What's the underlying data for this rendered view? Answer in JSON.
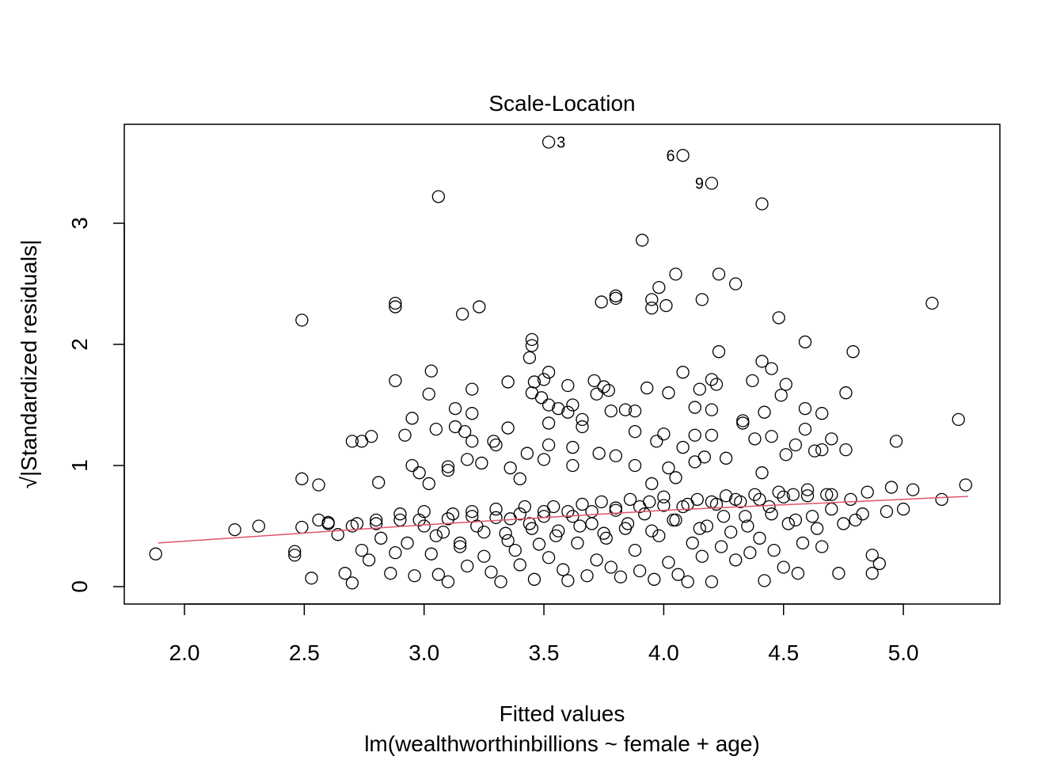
{
  "chart_data": {
    "type": "scatter",
    "title": "Scale-Location",
    "xlabel": "Fitted values",
    "sublabel": "lm(wealthworthinbillions ~ female + age)",
    "ylabel": "√|Standardized residuals|",
    "xlim": [
      1.78,
      5.4
    ],
    "ylim": [
      -0.14,
      3.82
    ],
    "xticks": [
      "2.0",
      "2.5",
      "3.0",
      "3.5",
      "4.0",
      "4.5",
      "5.0"
    ],
    "yticks": [
      "0",
      "1",
      "2",
      "3"
    ],
    "point_color": "#000000",
    "smoother_color": "#DF536B",
    "labeled_points": [
      {
        "label": "3",
        "x": 3.52,
        "y": 3.67
      },
      {
        "label": "6",
        "x": 4.08,
        "y": 3.56
      },
      {
        "label": "9",
        "x": 4.2,
        "y": 3.33
      }
    ],
    "points": [
      [
        3.06,
        3.22
      ],
      [
        4.41,
        3.16
      ],
      [
        3.91,
        2.86
      ],
      [
        4.05,
        2.58
      ],
      [
        4.23,
        2.58
      ],
      [
        4.3,
        2.5
      ],
      [
        3.98,
        2.47
      ],
      [
        3.95,
        2.37
      ],
      [
        3.95,
        2.3
      ],
      [
        4.01,
        2.32
      ],
      [
        4.16,
        2.37
      ],
      [
        3.8,
        2.4
      ],
      [
        3.8,
        2.38
      ],
      [
        3.74,
        2.35
      ],
      [
        2.88,
        2.34
      ],
      [
        2.88,
        2.31
      ],
      [
        3.23,
        2.31
      ],
      [
        3.16,
        2.25
      ],
      [
        2.49,
        2.2
      ],
      [
        4.48,
        2.22
      ],
      [
        5.12,
        2.34
      ],
      [
        4.59,
        2.02
      ],
      [
        4.79,
        1.94
      ],
      [
        4.23,
        1.94
      ],
      [
        3.45,
        2.04
      ],
      [
        3.45,
        1.99
      ],
      [
        3.44,
        1.89
      ],
      [
        3.03,
        1.78
      ],
      [
        3.52,
        1.77
      ],
      [
        4.08,
        1.77
      ],
      [
        4.41,
        1.86
      ],
      [
        4.45,
        1.8
      ],
      [
        2.88,
        1.7
      ],
      [
        3.35,
        1.69
      ],
      [
        3.46,
        1.69
      ],
      [
        3.5,
        1.71
      ],
      [
        3.71,
        1.7
      ],
      [
        4.2,
        1.71
      ],
      [
        4.22,
        1.67
      ],
      [
        4.51,
        1.67
      ],
      [
        4.37,
        1.7
      ],
      [
        3.6,
        1.66
      ],
      [
        3.75,
        1.65
      ],
      [
        3.77,
        1.62
      ],
      [
        3.72,
        1.59
      ],
      [
        3.45,
        1.6
      ],
      [
        3.49,
        1.56
      ],
      [
        3.2,
        1.63
      ],
      [
        3.02,
        1.59
      ],
      [
        3.93,
        1.64
      ],
      [
        4.02,
        1.6
      ],
      [
        4.15,
        1.63
      ],
      [
        4.76,
        1.6
      ],
      [
        4.49,
        1.58
      ],
      [
        3.52,
        1.5
      ],
      [
        3.56,
        1.47
      ],
      [
        3.6,
        1.44
      ],
      [
        3.62,
        1.5
      ],
      [
        3.78,
        1.45
      ],
      [
        3.84,
        1.46
      ],
      [
        3.88,
        1.45
      ],
      [
        4.13,
        1.48
      ],
      [
        4.2,
        1.46
      ],
      [
        4.42,
        1.44
      ],
      [
        4.59,
        1.47
      ],
      [
        4.66,
        1.43
      ],
      [
        3.13,
        1.47
      ],
      [
        3.2,
        1.43
      ],
      [
        2.95,
        1.39
      ],
      [
        3.66,
        1.38
      ],
      [
        4.33,
        1.37
      ],
      [
        4.33,
        1.35
      ],
      [
        5.23,
        1.38
      ],
      [
        3.05,
        1.3
      ],
      [
        3.35,
        1.31
      ],
      [
        3.13,
        1.32
      ],
      [
        3.17,
        1.28
      ],
      [
        3.52,
        1.35
      ],
      [
        3.66,
        1.32
      ],
      [
        3.88,
        1.28
      ],
      [
        4.0,
        1.26
      ],
      [
        4.13,
        1.25
      ],
      [
        4.2,
        1.25
      ],
      [
        4.38,
        1.22
      ],
      [
        4.45,
        1.24
      ],
      [
        4.59,
        1.3
      ],
      [
        4.7,
        1.22
      ],
      [
        2.92,
        1.25
      ],
      [
        2.78,
        1.24
      ],
      [
        2.7,
        1.2
      ],
      [
        2.74,
        1.2
      ],
      [
        3.29,
        1.2
      ],
      [
        3.2,
        1.2
      ],
      [
        3.3,
        1.17
      ],
      [
        4.97,
        1.2
      ],
      [
        4.55,
        1.17
      ],
      [
        4.76,
        1.13
      ],
      [
        4.63,
        1.12
      ],
      [
        4.66,
        1.13
      ],
      [
        3.43,
        1.1
      ],
      [
        3.52,
        1.17
      ],
      [
        3.62,
        1.15
      ],
      [
        3.73,
        1.1
      ],
      [
        3.8,
        1.08
      ],
      [
        3.97,
        1.2
      ],
      [
        4.08,
        1.15
      ],
      [
        4.17,
        1.07
      ],
      [
        4.26,
        1.06
      ],
      [
        4.51,
        1.09
      ],
      [
        3.18,
        1.05
      ],
      [
        3.24,
        1.02
      ],
      [
        3.5,
        1.05
      ],
      [
        2.95,
        1.0
      ],
      [
        2.98,
        0.94
      ],
      [
        3.1,
        0.96
      ],
      [
        3.1,
        0.99
      ],
      [
        3.36,
        0.98
      ],
      [
        3.62,
        1.0
      ],
      [
        3.88,
        1.0
      ],
      [
        4.02,
        0.98
      ],
      [
        4.13,
        1.03
      ],
      [
        4.41,
        0.94
      ],
      [
        2.49,
        0.89
      ],
      [
        2.56,
        0.84
      ],
      [
        2.81,
        0.86
      ],
      [
        3.02,
        0.85
      ],
      [
        3.4,
        0.89
      ],
      [
        3.95,
        0.85
      ],
      [
        4.05,
        0.9
      ],
      [
        4.95,
        0.82
      ],
      [
        5.04,
        0.8
      ],
      [
        5.26,
        0.84
      ],
      [
        5.16,
        0.72
      ],
      [
        4.85,
        0.78
      ],
      [
        1.88,
        0.27
      ],
      [
        2.21,
        0.47
      ],
      [
        2.31,
        0.5
      ],
      [
        2.46,
        0.29
      ],
      [
        2.46,
        0.26
      ],
      [
        2.49,
        0.49
      ],
      [
        2.53,
        0.07
      ],
      [
        2.56,
        0.55
      ],
      [
        2.6,
        0.53
      ],
      [
        2.64,
        0.43
      ],
      [
        2.67,
        0.11
      ],
      [
        2.7,
        0.03
      ],
      [
        2.72,
        0.52
      ],
      [
        2.74,
        0.3
      ],
      [
        2.77,
        0.22
      ],
      [
        2.8,
        0.55
      ],
      [
        2.82,
        0.4
      ],
      [
        2.86,
        0.11
      ],
      [
        2.88,
        0.28
      ],
      [
        2.9,
        0.6
      ],
      [
        2.93,
        0.36
      ],
      [
        2.96,
        0.09
      ],
      [
        2.98,
        0.55
      ],
      [
        3.0,
        0.62
      ],
      [
        3.03,
        0.27
      ],
      [
        3.06,
        0.1
      ],
      [
        3.08,
        0.45
      ],
      [
        3.1,
        0.04
      ],
      [
        3.12,
        0.6
      ],
      [
        3.15,
        0.33
      ],
      [
        3.18,
        0.17
      ],
      [
        3.2,
        0.62
      ],
      [
        3.22,
        0.5
      ],
      [
        3.25,
        0.25
      ],
      [
        3.28,
        0.12
      ],
      [
        3.3,
        0.64
      ],
      [
        3.32,
        0.04
      ],
      [
        3.34,
        0.44
      ],
      [
        3.36,
        0.56
      ],
      [
        3.38,
        0.3
      ],
      [
        3.4,
        0.18
      ],
      [
        3.42,
        0.66
      ],
      [
        3.44,
        0.52
      ],
      [
        3.46,
        0.06
      ],
      [
        3.48,
        0.35
      ],
      [
        3.5,
        0.62
      ],
      [
        3.52,
        0.24
      ],
      [
        3.54,
        0.66
      ],
      [
        3.56,
        0.46
      ],
      [
        3.58,
        0.14
      ],
      [
        3.6,
        0.05
      ],
      [
        3.62,
        0.58
      ],
      [
        3.64,
        0.36
      ],
      [
        3.66,
        0.68
      ],
      [
        3.68,
        0.09
      ],
      [
        3.7,
        0.52
      ],
      [
        3.72,
        0.22
      ],
      [
        3.74,
        0.7
      ],
      [
        3.76,
        0.4
      ],
      [
        3.78,
        0.16
      ],
      [
        3.8,
        0.63
      ],
      [
        3.82,
        0.08
      ],
      [
        3.84,
        0.48
      ],
      [
        3.86,
        0.72
      ],
      [
        3.88,
        0.3
      ],
      [
        3.9,
        0.13
      ],
      [
        3.92,
        0.6
      ],
      [
        3.94,
        0.7
      ],
      [
        3.96,
        0.06
      ],
      [
        3.98,
        0.42
      ],
      [
        4.0,
        0.74
      ],
      [
        4.02,
        0.2
      ],
      [
        4.04,
        0.55
      ],
      [
        4.06,
        0.1
      ],
      [
        4.08,
        0.66
      ],
      [
        4.1,
        0.04
      ],
      [
        4.12,
        0.36
      ],
      [
        4.14,
        0.72
      ],
      [
        4.16,
        0.25
      ],
      [
        4.18,
        0.5
      ],
      [
        4.2,
        0.04
      ],
      [
        4.22,
        0.68
      ],
      [
        4.24,
        0.33
      ],
      [
        4.26,
        0.75
      ],
      [
        4.28,
        0.45
      ],
      [
        4.3,
        0.22
      ],
      [
        4.32,
        0.7
      ],
      [
        4.34,
        0.58
      ],
      [
        4.36,
        0.28
      ],
      [
        4.38,
        0.76
      ],
      [
        4.4,
        0.4
      ],
      [
        4.42,
        0.05
      ],
      [
        4.44,
        0.66
      ],
      [
        4.46,
        0.3
      ],
      [
        4.48,
        0.78
      ],
      [
        4.5,
        0.16
      ],
      [
        4.52,
        0.52
      ],
      [
        4.54,
        0.76
      ],
      [
        4.56,
        0.11
      ],
      [
        4.58,
        0.36
      ],
      [
        4.6,
        0.8
      ],
      [
        4.62,
        0.58
      ],
      [
        4.64,
        0.48
      ],
      [
        4.66,
        0.33
      ],
      [
        4.68,
        0.76
      ],
      [
        4.7,
        0.64
      ],
      [
        4.73,
        0.11
      ],
      [
        4.75,
        0.52
      ],
      [
        4.78,
        0.72
      ],
      [
        4.8,
        0.55
      ],
      [
        4.83,
        0.6
      ],
      [
        4.87,
        0.26
      ],
      [
        4.87,
        0.11
      ],
      [
        4.9,
        0.19
      ],
      [
        4.93,
        0.62
      ],
      [
        5.0,
        0.64
      ],
      [
        2.6,
        0.52
      ],
      [
        2.7,
        0.5
      ],
      [
        2.8,
        0.52
      ],
      [
        2.9,
        0.55
      ],
      [
        3.0,
        0.5
      ],
      [
        3.1,
        0.56
      ],
      [
        3.2,
        0.58
      ],
      [
        3.3,
        0.57
      ],
      [
        3.4,
        0.6
      ],
      [
        3.5,
        0.58
      ],
      [
        3.6,
        0.62
      ],
      [
        3.7,
        0.62
      ],
      [
        3.8,
        0.65
      ],
      [
        3.9,
        0.66
      ],
      [
        4.0,
        0.67
      ],
      [
        4.1,
        0.68
      ],
      [
        4.2,
        0.7
      ],
      [
        4.3,
        0.72
      ],
      [
        4.4,
        0.72
      ],
      [
        4.5,
        0.74
      ],
      [
        4.6,
        0.75
      ],
      [
        4.7,
        0.76
      ],
      [
        3.05,
        0.42
      ],
      [
        3.25,
        0.45
      ],
      [
        3.45,
        0.48
      ],
      [
        3.65,
        0.5
      ],
      [
        3.85,
        0.52
      ],
      [
        4.05,
        0.55
      ],
      [
        4.25,
        0.58
      ],
      [
        4.45,
        0.6
      ],
      [
        3.15,
        0.36
      ],
      [
        3.35,
        0.38
      ],
      [
        3.55,
        0.42
      ],
      [
        3.75,
        0.44
      ],
      [
        3.95,
        0.46
      ],
      [
        4.15,
        0.48
      ],
      [
        4.35,
        0.5
      ],
      [
        4.55,
        0.55
      ]
    ],
    "smoother": [
      [
        1.89,
        0.36
      ],
      [
        3.0,
        0.51
      ],
      [
        4.0,
        0.63
      ],
      [
        5.27,
        0.745
      ]
    ]
  }
}
